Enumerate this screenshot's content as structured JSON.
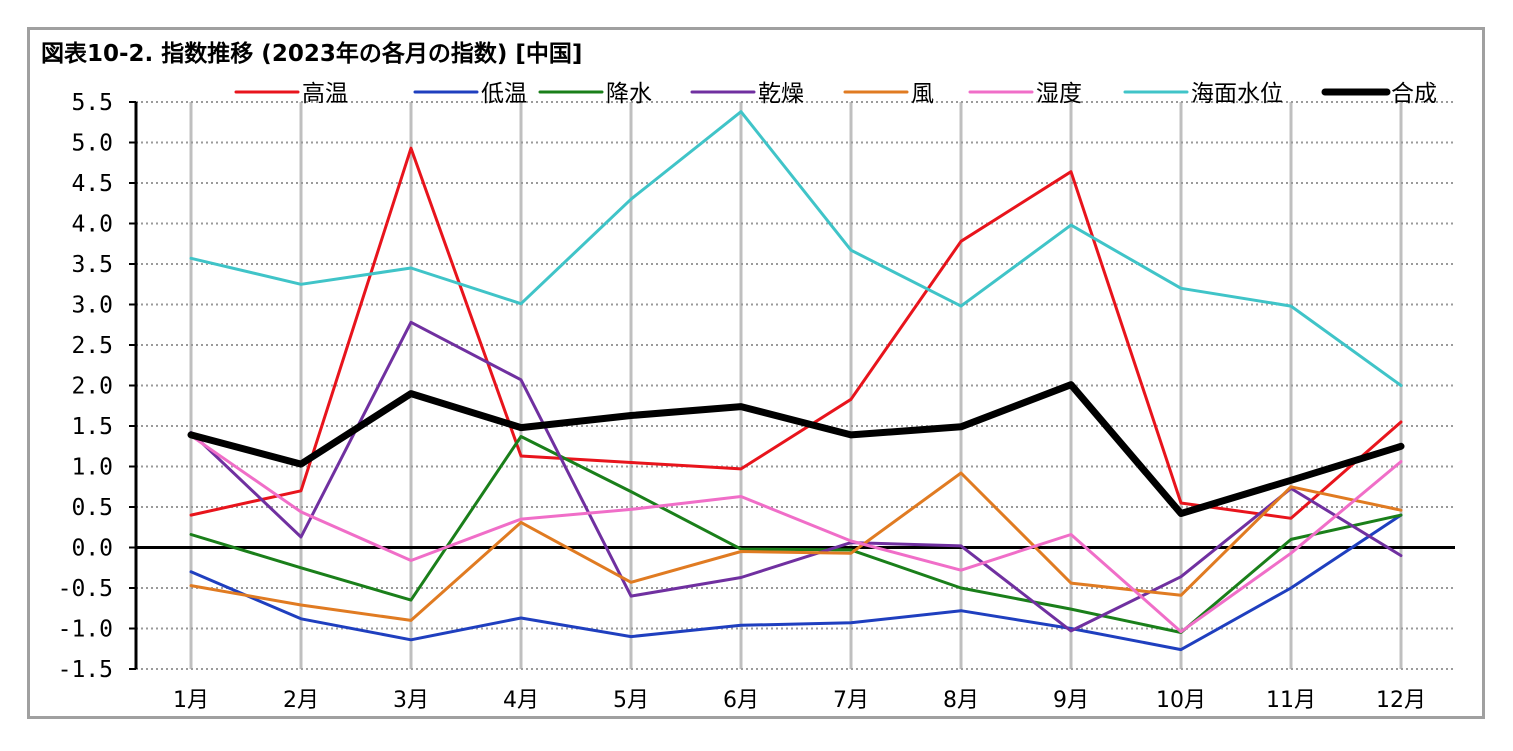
{
  "title": "図表10-2. 指数推移 (2023年の各月の指数) [中国]",
  "chart_data": {
    "type": "line",
    "title": "図表10-2. 指数推移 (2023年の各月の指数) [中国]",
    "xlabel": "",
    "ylabel": "",
    "ylim": [
      -1.5,
      5.5
    ],
    "ytick_step": 0.5,
    "yticks": [
      "5.5",
      "5.0",
      "4.5",
      "4.0",
      "3.5",
      "3.0",
      "2.5",
      "2.0",
      "1.5",
      "1.0",
      "0.5",
      "0.0",
      "-0.5",
      "-1.0",
      "-1.5"
    ],
    "grid": "dotted horizontal, solid vertical",
    "legend": "top",
    "categories": [
      "1月",
      "2月",
      "3月",
      "4月",
      "5月",
      "6月",
      "7月",
      "8月",
      "9月",
      "10月",
      "11月",
      "12月"
    ],
    "series": [
      {
        "name": "高温",
        "color": "#e8141c",
        "width": 3,
        "values": [
          0.4,
          0.7,
          4.93,
          1.13,
          1.05,
          0.97,
          1.83,
          3.78,
          4.64,
          0.55,
          0.36,
          1.55
        ]
      },
      {
        "name": "低温",
        "color": "#1f3fbf",
        "width": 3,
        "values": [
          -0.3,
          -0.88,
          -1.14,
          -0.87,
          -1.1,
          -0.96,
          -0.93,
          -0.78,
          -1.0,
          -1.26,
          -0.5,
          0.4
        ]
      },
      {
        "name": "降水",
        "color": "#1a7f1a",
        "width": 3,
        "values": [
          0.16,
          -0.25,
          -0.65,
          1.37,
          0.69,
          -0.02,
          -0.03,
          -0.5,
          -0.76,
          -1.05,
          0.1,
          0.4
        ]
      },
      {
        "name": "乾燥",
        "color": "#7030a0",
        "width": 3,
        "values": [
          1.42,
          0.13,
          2.78,
          2.07,
          -0.6,
          -0.37,
          0.06,
          0.02,
          -1.03,
          -0.36,
          0.73,
          -0.1
        ]
      },
      {
        "name": "風",
        "color": "#e07b22",
        "width": 3,
        "values": [
          -0.47,
          -0.71,
          -0.9,
          0.31,
          -0.43,
          -0.05,
          -0.07,
          0.92,
          -0.44,
          -0.59,
          0.75,
          0.46
        ]
      },
      {
        "name": "湿度",
        "color": "#f06ec8",
        "width": 3,
        "values": [
          1.38,
          0.44,
          -0.16,
          0.35,
          0.47,
          0.63,
          0.08,
          -0.28,
          0.16,
          -1.04,
          -0.07,
          1.06
        ]
      },
      {
        "name": "海面水位",
        "color": "#40c4c8",
        "width": 3,
        "values": [
          3.57,
          3.25,
          3.45,
          3.01,
          4.3,
          5.38,
          3.67,
          2.98,
          3.98,
          3.2,
          2.98,
          2.0
        ]
      },
      {
        "name": "合成",
        "color": "#000000",
        "width": 7,
        "values": [
          1.39,
          1.03,
          1.9,
          1.48,
          1.63,
          1.74,
          1.39,
          1.49,
          2.01,
          0.42,
          0.83,
          1.25
        ]
      }
    ]
  }
}
